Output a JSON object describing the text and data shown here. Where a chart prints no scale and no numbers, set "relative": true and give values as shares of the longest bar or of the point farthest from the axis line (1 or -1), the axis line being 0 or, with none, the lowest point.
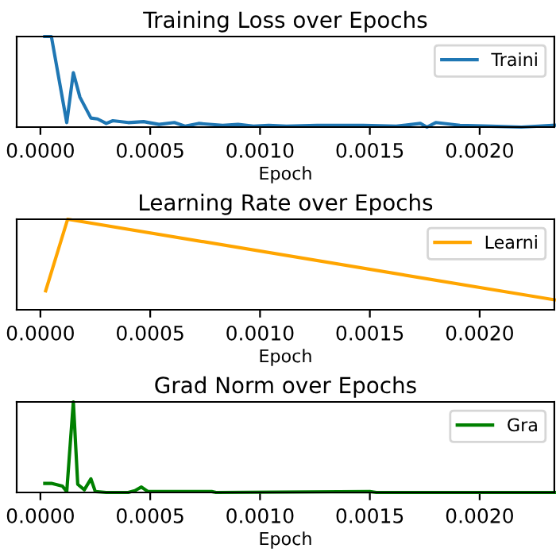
{
  "chart_data": [
    {
      "type": "line",
      "title": "Training Loss over Epochs",
      "xlabel": "Epoch",
      "relative": true,
      "legend": "top right",
      "grid": false,
      "xlim": [
        -0.000108,
        0.00234
      ],
      "xticks": [
        {
          "value": 0,
          "label": "0.0000"
        },
        {
          "value": 0.0005,
          "label": "0.0005"
        },
        {
          "value": 0.001,
          "label": "0.0010"
        },
        {
          "value": 0.0015,
          "label": "0.0015"
        },
        {
          "value": 0.002,
          "label": "0.0020"
        }
      ],
      "tick_labels": "x",
      "series": [
        {
          "name": "Traini",
          "color": "#1f77b4",
          "x": [
            2e-05,
            5e-05,
            0.00012,
            0.00015,
            0.00018,
            0.00023,
            0.00026,
            0.0003,
            0.00033,
            0.0004,
            0.00047,
            0.00054,
            0.00061,
            0.00066,
            0.00072,
            0.00083,
            0.0009,
            0.00097,
            0.00104,
            0.00112,
            0.00126,
            0.00147,
            0.00162,
            0.00173,
            0.00176,
            0.0018,
            0.00191,
            0.00205,
            0.00219,
            0.00234
          ],
          "values": [
            1,
            1,
            0.05,
            0.6,
            0.33,
            0.1,
            0.09,
            0.04,
            0.07,
            0.05,
            0.06,
            0.03,
            0.05,
            0.01,
            0.04,
            0.02,
            0.03,
            0.01,
            0.02,
            0.01,
            0.02,
            0.02,
            0.01,
            0.04,
            0,
            0.05,
            0.02,
            0.01,
            0,
            0.02
          ]
        }
      ]
    },
    {
      "type": "line",
      "title": "Learning Rate over Epochs",
      "xlabel": "Epoch",
      "relative": true,
      "legend": "top right",
      "grid": false,
      "xlim": [
        -0.000108,
        0.00234
      ],
      "xticks": [
        {
          "value": 0,
          "label": "0.0000"
        },
        {
          "value": 0.0005,
          "label": "0.0005"
        },
        {
          "value": 0.001,
          "label": "0.0010"
        },
        {
          "value": 0.0015,
          "label": "0.0015"
        },
        {
          "value": 0.002,
          "label": "0.0020"
        }
      ],
      "tick_labels": "x",
      "series": [
        {
          "name": "Learni",
          "color": "#ffa500",
          "x": [
            2.4e-05,
            0.000124,
            0.00234
          ],
          "values": [
            0.21,
            1,
            0.11
          ]
        }
      ]
    },
    {
      "type": "line",
      "title": "Grad Norm over Epochs",
      "xlabel": "Epoch",
      "relative": true,
      "legend": "top right",
      "grid": false,
      "xlim": [
        -0.000108,
        0.00234
      ],
      "xticks": [
        {
          "value": 0,
          "label": "0.0000"
        },
        {
          "value": 0.0005,
          "label": "0.0005"
        },
        {
          "value": 0.001,
          "label": "0.0010"
        },
        {
          "value": 0.0015,
          "label": "0.0015"
        },
        {
          "value": 0.002,
          "label": "0.0020"
        }
      ],
      "tick_labels": "x",
      "series": [
        {
          "name": "Gra",
          "color": "#008000",
          "x": [
            2e-05,
            5e-05,
            0.0001,
            0.00012,
            0.00015,
            0.00017,
            0.0002,
            0.00023,
            0.00025,
            0.0003,
            0.0004,
            0.00043,
            0.00046,
            0.00049,
            0.00078,
            0.0008,
            0.0015,
            0.00153,
            0.00234
          ],
          "values": [
            0.1,
            0.1,
            0.07,
            0.01,
            1,
            0.09,
            0.03,
            0.15,
            0.01,
            0,
            0,
            0.02,
            0.06,
            0.01,
            0.01,
            0,
            0.01,
            0,
            0
          ]
        }
      ]
    }
  ]
}
